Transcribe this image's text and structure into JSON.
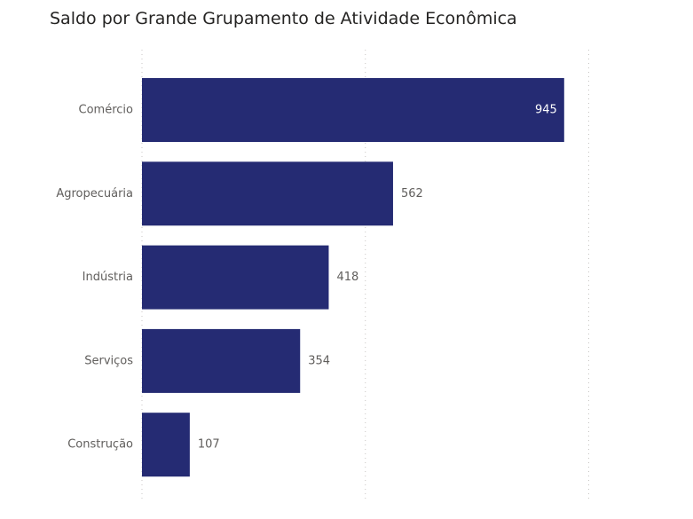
{
  "chart_data": {
    "type": "bar",
    "orientation": "horizontal",
    "title": "Saldo por Grande Grupamento de Atividade Econômica",
    "categories": [
      "Comércio",
      "Agropecuária",
      "Indústria",
      "Serviços",
      "Construção"
    ],
    "values": [
      945,
      562,
      418,
      354,
      107
    ],
    "xlim": [
      0,
      1000
    ],
    "grid": true,
    "bar_color": "#252b73",
    "label_color_inside": "#ffffff",
    "label_color_outside": "#605e5c",
    "grid_color": "#c8c6c4"
  }
}
